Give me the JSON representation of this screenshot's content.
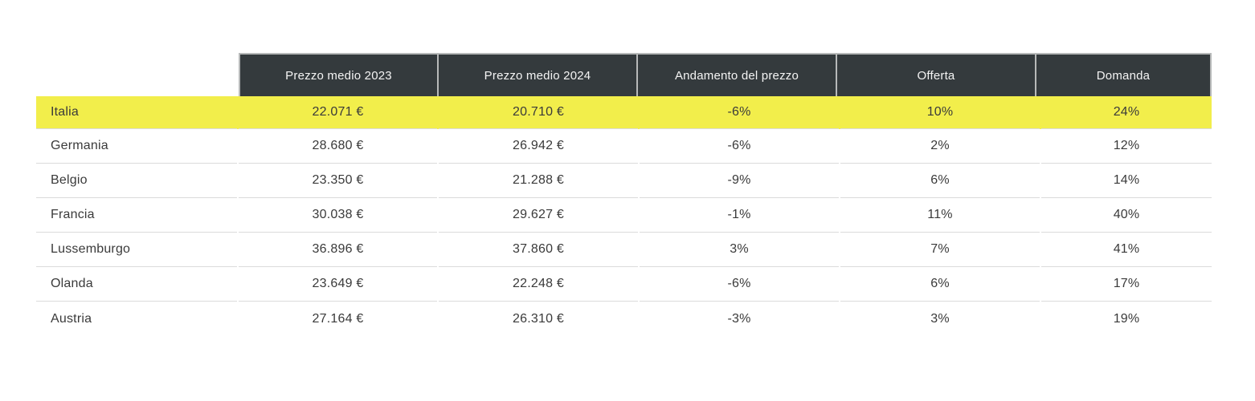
{
  "chart_data": {
    "type": "table",
    "title": "",
    "columns": [
      "",
      "Prezzo medio 2023",
      "Prezzo medio 2024",
      "Andamento del prezzo",
      "Offerta",
      "Domanda"
    ],
    "rows": [
      [
        "Italia",
        "22.071 €",
        "20.710 €",
        "-6%",
        "10%",
        "24%"
      ],
      [
        "Germania",
        "28.680 €",
        "26.942 €",
        "-6%",
        "2%",
        "12%"
      ],
      [
        "Belgio",
        "23.350 €",
        "21.288 €",
        "-9%",
        "6%",
        "14%"
      ],
      [
        "Francia",
        "30.038 €",
        "29.627 €",
        "-1%",
        "11%",
        "40%"
      ],
      [
        "Lussemburgo",
        "36.896 €",
        "37.860 €",
        "3%",
        "7%",
        "41%"
      ],
      [
        "Olanda",
        "23.649 €",
        "22.248 €",
        "-6%",
        "6%",
        "17%"
      ],
      [
        "Austria",
        "27.164 €",
        "26.310 €",
        "-3%",
        "3%",
        "19%"
      ]
    ],
    "highlighted_row": "Italia"
  },
  "header": {
    "labels": [
      "Prezzo medio 2023",
      "Prezzo medio 2024",
      "Andamento del prezzo",
      "Offerta",
      "Domanda"
    ]
  },
  "rows": [
    {
      "country": "Italia",
      "price_2023": "22.071 €",
      "price_2024": "20.710 €",
      "trend": "-6%",
      "offer": "10%",
      "demand": "24%"
    },
    {
      "country": "Germania",
      "price_2023": "28.680 €",
      "price_2024": "26.942 €",
      "trend": "-6%",
      "offer": "2%",
      "demand": "12%"
    },
    {
      "country": "Belgio",
      "price_2023": "23.350 €",
      "price_2024": "21.288 €",
      "trend": "-9%",
      "offer": "6%",
      "demand": "14%"
    },
    {
      "country": "Francia",
      "price_2023": "30.038 €",
      "price_2024": "29.627 €",
      "trend": "-1%",
      "offer": "11%",
      "demand": "40%"
    },
    {
      "country": "Lussemburgo",
      "price_2023": "36.896 €",
      "price_2024": "37.860 €",
      "trend": "3%",
      "offer": "7%",
      "demand": "41%"
    },
    {
      "country": "Olanda",
      "price_2023": "23.649 €",
      "price_2024": "22.248 €",
      "trend": "-6%",
      "offer": "6%",
      "demand": "17%"
    },
    {
      "country": "Austria",
      "price_2023": "27.164 €",
      "price_2024": "26.310 €",
      "trend": "-3%",
      "offer": "3%",
      "demand": "19%"
    }
  ],
  "colors": {
    "highlight_yellow": "#F2EE4B",
    "header_bg": "#343A3D",
    "header_text": "#F4F4F4",
    "header_frame": "#B7B9B9",
    "row_divider": "#DBDBDB",
    "body_text": "#3A3A3A"
  }
}
